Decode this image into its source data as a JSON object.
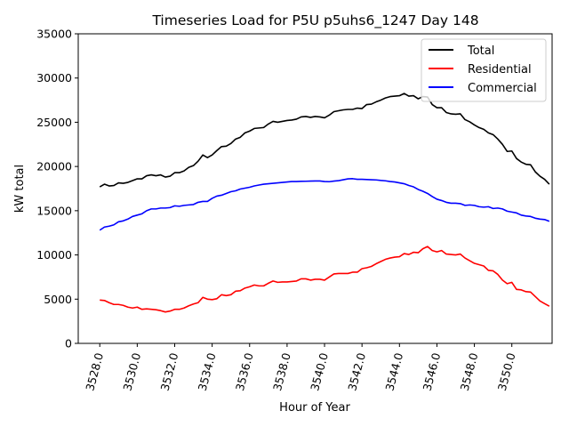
{
  "chart_data": {
    "type": "line",
    "title": "Timeseries Load for P5U p5uhs6_1247  Day 148",
    "xlabel": "Hour of Year",
    "ylabel": "kW total",
    "xlim": [
      3526.85,
      3552.15
    ],
    "ylim": [
      0,
      35000
    ],
    "xticks": [
      3528,
      3530,
      3532,
      3534,
      3536,
      3538,
      3540,
      3542,
      3544,
      3546,
      3548,
      3550
    ],
    "xtick_labels": [
      "3528.0",
      "3530.0",
      "3532.0",
      "3534.0",
      "3536.0",
      "3538.0",
      "3540.0",
      "3542.0",
      "3544.0",
      "3546.0",
      "3548.0",
      "3550.0"
    ],
    "yticks": [
      0,
      5000,
      10000,
      15000,
      20000,
      25000,
      30000,
      35000
    ],
    "ytick_labels": [
      "0",
      "5000",
      "10000",
      "15000",
      "20000",
      "25000",
      "30000",
      "35000"
    ],
    "grid": false,
    "legend_position": "top-right",
    "x_start": 3528.0,
    "x_step": 0.25,
    "series": [
      {
        "name": "Total",
        "color": "#000000",
        "values": [
          17700,
          18000,
          17800,
          17850,
          18150,
          18100,
          18200,
          18400,
          18600,
          18600,
          18950,
          19050,
          18950,
          19050,
          18800,
          18900,
          19300,
          19300,
          19500,
          19900,
          20100,
          20600,
          21300,
          21000,
          21300,
          21800,
          22250,
          22300,
          22600,
          23100,
          23300,
          23800,
          24000,
          24300,
          24350,
          24400,
          24800,
          25100,
          25000,
          25100,
          25200,
          25250,
          25350,
          25600,
          25650,
          25550,
          25650,
          25600,
          25500,
          25800,
          26200,
          26300,
          26400,
          26450,
          26450,
          26600,
          26550,
          27000,
          27050,
          27300,
          27500,
          27750,
          27900,
          27950,
          28000,
          28250,
          27950,
          28000,
          27650,
          27900,
          27850,
          27000,
          26650,
          26650,
          26100,
          25950,
          25900,
          25950,
          25300,
          25050,
          24700,
          24400,
          24200,
          23800,
          23600,
          23100,
          22500,
          21700,
          21750,
          20900,
          20500,
          20250,
          20200,
          19400,
          18900,
          18550,
          18000
        ]
      },
      {
        "name": "Residential",
        "color": "#ff0000",
        "values": [
          4900,
          4850,
          4600,
          4400,
          4400,
          4300,
          4100,
          4000,
          4100,
          3850,
          3900,
          3850,
          3800,
          3700,
          3550,
          3650,
          3850,
          3850,
          4000,
          4250,
          4450,
          4600,
          5200,
          5000,
          4950,
          5050,
          5500,
          5400,
          5500,
          5900,
          5950,
          6250,
          6400,
          6600,
          6500,
          6500,
          6800,
          7050,
          6900,
          6950,
          6950,
          7000,
          7050,
          7300,
          7300,
          7150,
          7250,
          7250,
          7150,
          7500,
          7850,
          7900,
          7900,
          7900,
          8050,
          8050,
          8450,
          8550,
          8700,
          9000,
          9250,
          9500,
          9650,
          9750,
          9800,
          10150,
          10050,
          10300,
          10250,
          10700,
          10950,
          10500,
          10350,
          10500,
          10100,
          10050,
          10000,
          10100,
          9650,
          9350,
          9050,
          8900,
          8750,
          8250,
          8200,
          7800,
          7150,
          6750,
          6900,
          6100,
          6050,
          5850,
          5800,
          5300,
          4800,
          4500,
          4200
        ]
      },
      {
        "name": "Commercial",
        "color": "#0000ff",
        "values": [
          12800,
          13150,
          13250,
          13400,
          13750,
          13850,
          14050,
          14350,
          14500,
          14650,
          15000,
          15200,
          15200,
          15300,
          15300,
          15350,
          15550,
          15500,
          15600,
          15650,
          15700,
          15950,
          16050,
          16050,
          16400,
          16650,
          16750,
          16950,
          17150,
          17250,
          17450,
          17550,
          17650,
          17800,
          17900,
          18000,
          18050,
          18100,
          18150,
          18200,
          18250,
          18300,
          18300,
          18320,
          18330,
          18350,
          18360,
          18360,
          18300,
          18280,
          18350,
          18400,
          18500,
          18600,
          18620,
          18550,
          18550,
          18520,
          18500,
          18480,
          18420,
          18380,
          18300,
          18250,
          18150,
          18050,
          17850,
          17700,
          17400,
          17200,
          16950,
          16600,
          16300,
          16150,
          15950,
          15850,
          15850,
          15800,
          15600,
          15650,
          15600,
          15450,
          15400,
          15450,
          15250,
          15300,
          15200,
          14950,
          14850,
          14750,
          14500,
          14400,
          14350,
          14150,
          14050,
          14000,
          13800
        ]
      }
    ]
  }
}
